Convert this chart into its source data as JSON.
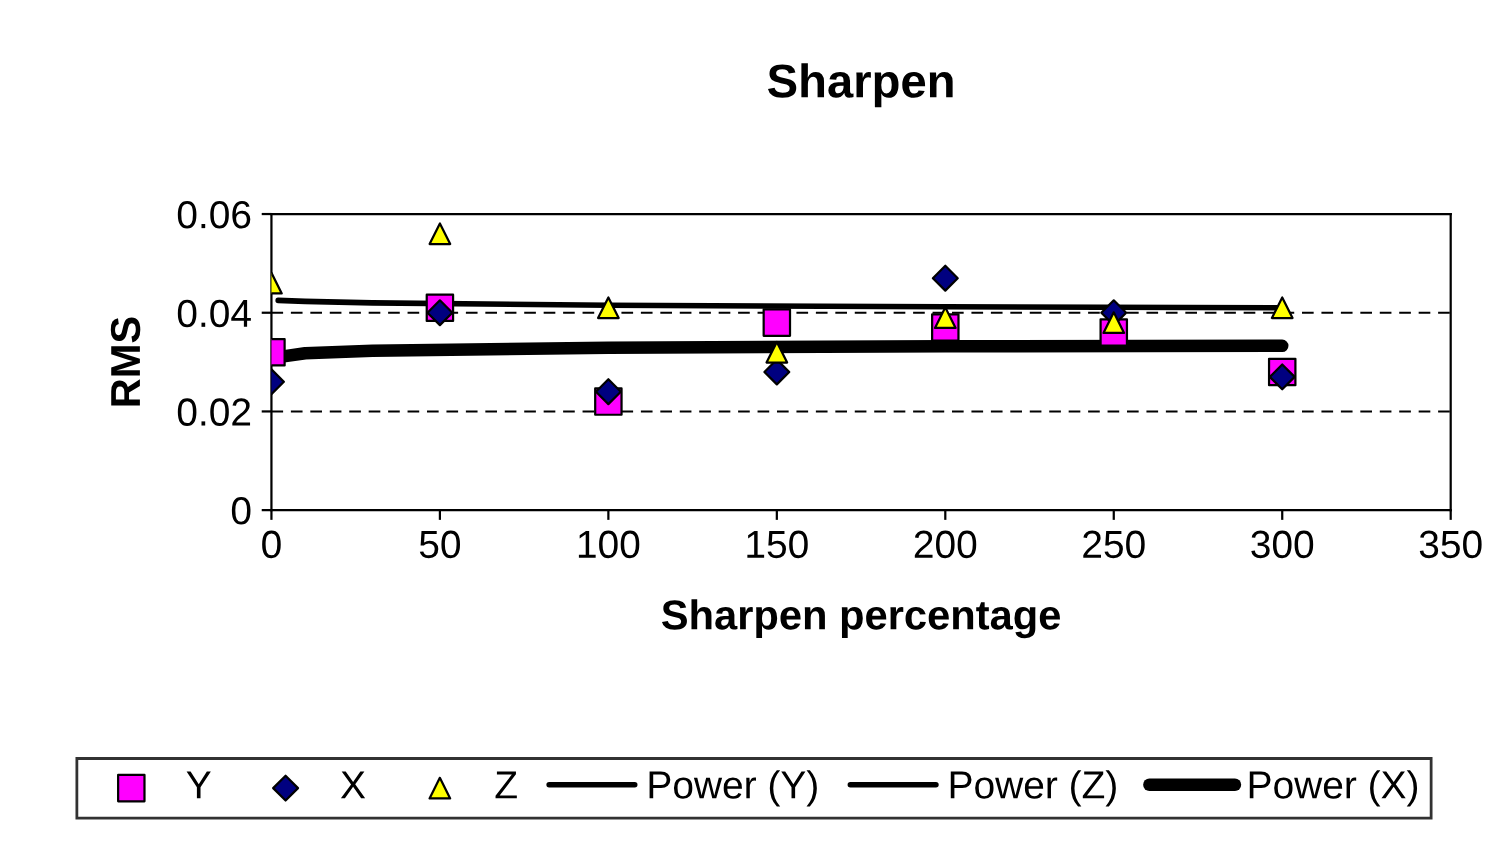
{
  "chart_data": {
    "type": "scatter",
    "title": "Sharpen",
    "xlabel": "Sharpen percentage",
    "ylabel": "RMS",
    "x": [
      0,
      50,
      100,
      150,
      200,
      250,
      300
    ],
    "xlim": [
      0,
      350
    ],
    "xticks": [
      0,
      50,
      100,
      150,
      200,
      250,
      300,
      350
    ],
    "ylim": [
      0,
      0.06
    ],
    "yticks": [
      {
        "value": 0,
        "label": "0"
      },
      {
        "value": 0.02,
        "label": "0.02"
      },
      {
        "value": 0.04,
        "label": "0.04"
      },
      {
        "value": 0.06,
        "label": "0.06"
      }
    ],
    "grid": "y",
    "legend": "bottom",
    "series": [
      {
        "name": "Y",
        "marker": "square",
        "color": "#ff00ff",
        "values": [
          0.032,
          0.041,
          0.022,
          0.038,
          0.037,
          0.036,
          0.028
        ]
      },
      {
        "name": "X",
        "marker": "diamond",
        "color": "#000080",
        "values": [
          0.026,
          0.04,
          0.024,
          0.028,
          0.047,
          0.04,
          0.027
        ]
      },
      {
        "name": "Z",
        "marker": "triangle",
        "color": "#ffff00",
        "values": [
          0.046,
          0.056,
          0.041,
          0.032,
          0.039,
          0.038,
          0.041
        ]
      },
      {
        "name": "Power (Y)",
        "type": "line",
        "color": "#000000",
        "values": [
          null,
          null,
          null,
          null,
          null,
          null,
          null
        ]
      },
      {
        "name": "Power (Z)",
        "type": "line",
        "color": "#000000",
        "x": [
          2,
          10,
          30,
          100,
          200,
          300
        ],
        "values": [
          0.0425,
          0.0423,
          0.042,
          0.0415,
          0.0412,
          0.041
        ]
      },
      {
        "name": "Power (X)",
        "type": "line",
        "color": "#000000",
        "x": [
          2,
          10,
          30,
          100,
          200,
          300
        ],
        "values": [
          0.031,
          0.0318,
          0.0323,
          0.0329,
          0.0332,
          0.0333
        ]
      }
    ]
  }
}
